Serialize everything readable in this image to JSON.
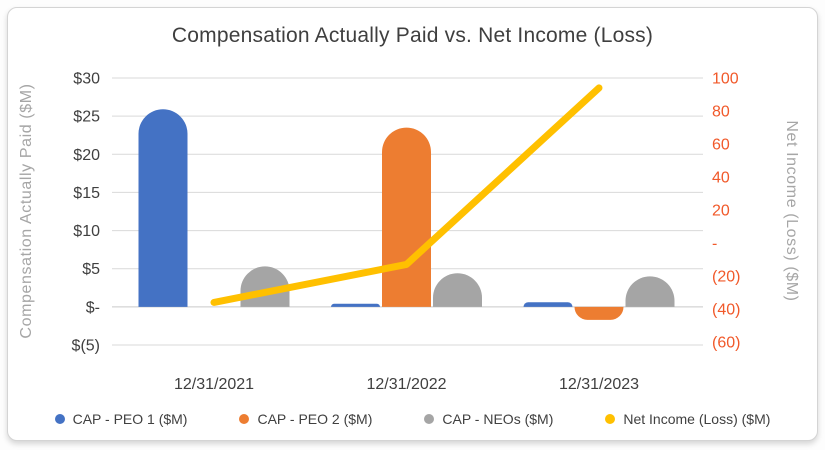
{
  "chart_data": {
    "type": "bar",
    "subtype": "combo-bar-line",
    "title": "Compensation Actually Paid vs. Net Income (Loss)",
    "categories": [
      "12/31/2021",
      "12/31/2022",
      "12/31/2023"
    ],
    "bar_series": [
      {
        "name": "CAP - PEO 1 ($M)",
        "color": "#4472C4",
        "axis": "left",
        "values": [
          25.9,
          0.4,
          0.6
        ]
      },
      {
        "name": "CAP - PEO 2 ($M)",
        "color": "#ED7D31",
        "axis": "left",
        "values": [
          0,
          23.5,
          -1.7
        ]
      },
      {
        "name": "CAP - NEOs ($M)",
        "color": "#A5A5A5",
        "axis": "left",
        "values": [
          5.3,
          4.4,
          4.0
        ]
      }
    ],
    "line_series": [
      {
        "name": "Net Income (Loss) ($M)",
        "color": "#FFC000",
        "axis": "right",
        "values": [
          -36,
          -13,
          94
        ]
      }
    ],
    "left_axis": {
      "title": "Compensation Actually Paid ($M)",
      "min": -5,
      "max": 30,
      "step": 5,
      "ticks": [
        "$30",
        "$25",
        "$20",
        "$15",
        "$10",
        "$5",
        "$-",
        "$(5)"
      ],
      "label_color": "#404040",
      "title_color": "#A6A6A6"
    },
    "right_axis": {
      "title": "Net Income (Loss) ($M)",
      "min": -60,
      "max": 100,
      "step": 20,
      "ticks": [
        "100",
        "80",
        "60",
        "40",
        "20",
        "-",
        "(20)",
        "(40)",
        "(60)"
      ],
      "label_color": "#F1592A",
      "title_color": "#A6A6A6"
    },
    "grid": {
      "show": true,
      "color": "#D9D9D9",
      "zero_line_color": "#C9C9C9"
    },
    "legend_position": "bottom"
  }
}
